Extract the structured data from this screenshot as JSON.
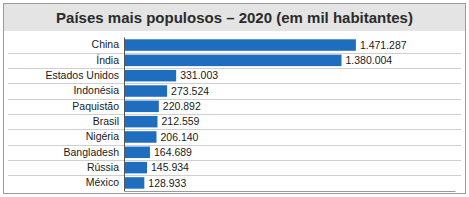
{
  "chart_data": {
    "type": "bar",
    "orientation": "horizontal",
    "title": "Países mais populosos – 2020 (em mil habitantes)",
    "categories": [
      "China",
      "Índia",
      "Estados Unidos",
      "Indonésia",
      "Paquistão",
      "Brasil",
      "Nigéria",
      "Bangladesh",
      "Rússia",
      "México"
    ],
    "values": [
      1471287,
      1380004,
      331003,
      273524,
      220892,
      212559,
      206140,
      164689,
      145934,
      128933
    ],
    "value_labels": [
      "1.471.287",
      "1.380.004",
      "331.003",
      "273.524",
      "220.892",
      "212.559",
      "206.140",
      "164.689",
      "145.934",
      "128.933"
    ],
    "color": "#1f6dbf",
    "xlim": [
      0,
      2100000
    ],
    "data_labels": true,
    "tick_labels": "y"
  }
}
